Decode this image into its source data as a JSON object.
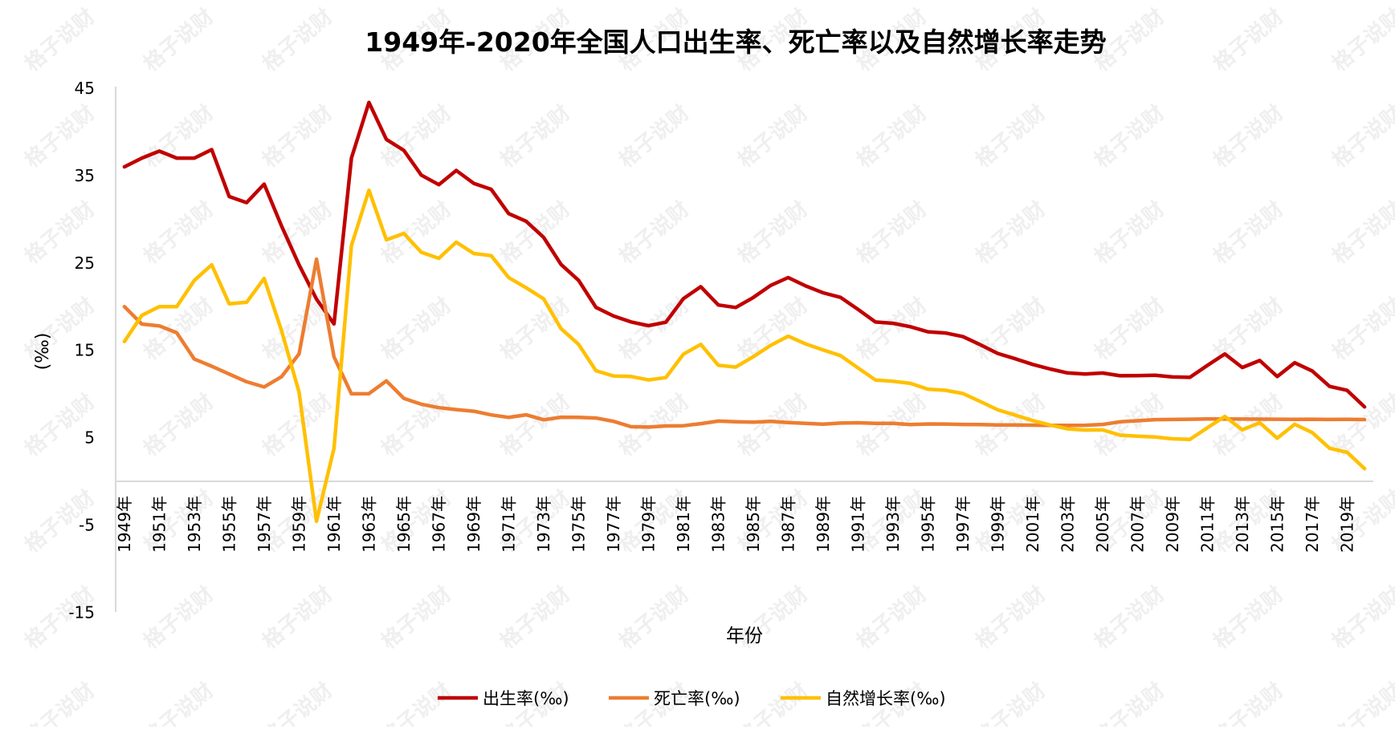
{
  "watermark": "格子说财",
  "chart_data": {
    "type": "line",
    "title": "1949年-2020年全国人口出生率、死亡率以及自然增长率走势",
    "xlabel": "年份",
    "ylabel": "(‰)",
    "ylim": [
      -15,
      45
    ],
    "yticks": [
      45,
      35,
      25,
      15,
      5,
      -5,
      -15
    ],
    "grid": false,
    "legend_position": "bottom",
    "x": [
      1949,
      1950,
      1951,
      1952,
      1953,
      1954,
      1955,
      1956,
      1957,
      1958,
      1959,
      1960,
      1961,
      1962,
      1963,
      1964,
      1965,
      1966,
      1967,
      1968,
      1969,
      1970,
      1971,
      1972,
      1973,
      1974,
      1975,
      1976,
      1977,
      1978,
      1979,
      1980,
      1981,
      1982,
      1983,
      1984,
      1985,
      1986,
      1987,
      1988,
      1989,
      1990,
      1991,
      1992,
      1993,
      1994,
      1995,
      1996,
      1997,
      1998,
      1999,
      2000,
      2001,
      2002,
      2003,
      2004,
      2005,
      2006,
      2007,
      2008,
      2009,
      2010,
      2011,
      2012,
      2013,
      2014,
      2015,
      2016,
      2017,
      2018,
      2019,
      2020
    ],
    "xtick_labels": [
      "1949年",
      "1951年",
      "1953年",
      "1955年",
      "1957年",
      "1959年",
      "1961年",
      "1963年",
      "1965年",
      "1967年",
      "1969年",
      "1971年",
      "1973年",
      "1975年",
      "1977年",
      "1979年",
      "1981年",
      "1983年",
      "1985年",
      "1987年",
      "1989年",
      "1991年",
      "1993年",
      "1995年",
      "1997年",
      "1999年",
      "2001年",
      "2003年",
      "2005年",
      "2007年",
      "2009年",
      "2011年",
      "2013年",
      "2015年",
      "2017年",
      "2019年"
    ],
    "series": [
      {
        "name": "出生率(‰)",
        "color": "#C00000",
        "values": [
          36,
          37,
          37.8,
          37,
          37,
          37.97,
          32.6,
          31.9,
          34.03,
          29.22,
          24.78,
          20.86,
          18.02,
          37.01,
          43.37,
          39.14,
          37.88,
          35.05,
          33.96,
          35.59,
          34.11,
          33.43,
          30.65,
          29.77,
          27.93,
          24.82,
          23.01,
          19.91,
          18.93,
          18.25,
          17.82,
          18.21,
          20.91,
          22.28,
          20.19,
          19.9,
          21.04,
          22.43,
          23.33,
          22.37,
          21.58,
          21.06,
          19.68,
          18.24,
          18.09,
          17.7,
          17.12,
          16.98,
          16.57,
          15.64,
          14.64,
          14.03,
          13.38,
          12.86,
          12.41,
          12.29,
          12.4,
          12.09,
          12.1,
          12.14,
          11.95,
          11.9,
          13.27,
          14.57,
          13.03,
          13.83,
          11.99,
          13.57,
          12.64,
          10.86,
          10.41,
          8.52
        ]
      },
      {
        "name": "死亡率(‰)",
        "color": "#ED7D31",
        "values": [
          20,
          18,
          17.8,
          17,
          14,
          13.18,
          12.28,
          11.4,
          10.8,
          11.98,
          14.59,
          25.43,
          14.24,
          10.02,
          10.04,
          11.5,
          9.5,
          8.83,
          8.43,
          8.21,
          8.03,
          7.6,
          7.32,
          7.61,
          7.04,
          7.34,
          7.32,
          7.25,
          6.87,
          6.25,
          6.21,
          6.34,
          6.36,
          6.6,
          6.9,
          6.82,
          6.78,
          6.86,
          6.72,
          6.64,
          6.54,
          6.67,
          6.7,
          6.64,
          6.64,
          6.49,
          6.57,
          6.56,
          6.51,
          6.5,
          6.46,
          6.45,
          6.43,
          6.41,
          6.4,
          6.42,
          6.51,
          6.81,
          6.93,
          7.06,
          7.08,
          7.11,
          7.14,
          7.13,
          7.13,
          7.12,
          7.11,
          7.09,
          7.11,
          7.08,
          7.09,
          7.07
        ]
      },
      {
        "name": "自然增长率(‰)",
        "color": "#FFC000",
        "values": [
          16,
          19,
          20,
          20,
          23,
          24.79,
          20.32,
          20.5,
          23.23,
          17.24,
          10.19,
          -4.57,
          3.78,
          26.99,
          33.33,
          27.64,
          28.38,
          26.22,
          25.53,
          27.38,
          26.08,
          25.83,
          23.33,
          22.16,
          20.89,
          17.48,
          15.69,
          12.66,
          12.06,
          12,
          11.61,
          11.87,
          14.55,
          15.68,
          13.29,
          13.08,
          14.26,
          15.57,
          16.61,
          15.73,
          15.04,
          14.39,
          12.98,
          11.6,
          11.45,
          11.21,
          10.55,
          10.42,
          10.06,
          9.14,
          8.18,
          7.58,
          6.95,
          6.45,
          6.01,
          5.87,
          5.89,
          5.28,
          5.17,
          5.08,
          4.87,
          4.79,
          6.13,
          7.43,
          5.9,
          6.71,
          4.93,
          6.53,
          5.58,
          3.78,
          3.32,
          1.45
        ]
      }
    ]
  }
}
